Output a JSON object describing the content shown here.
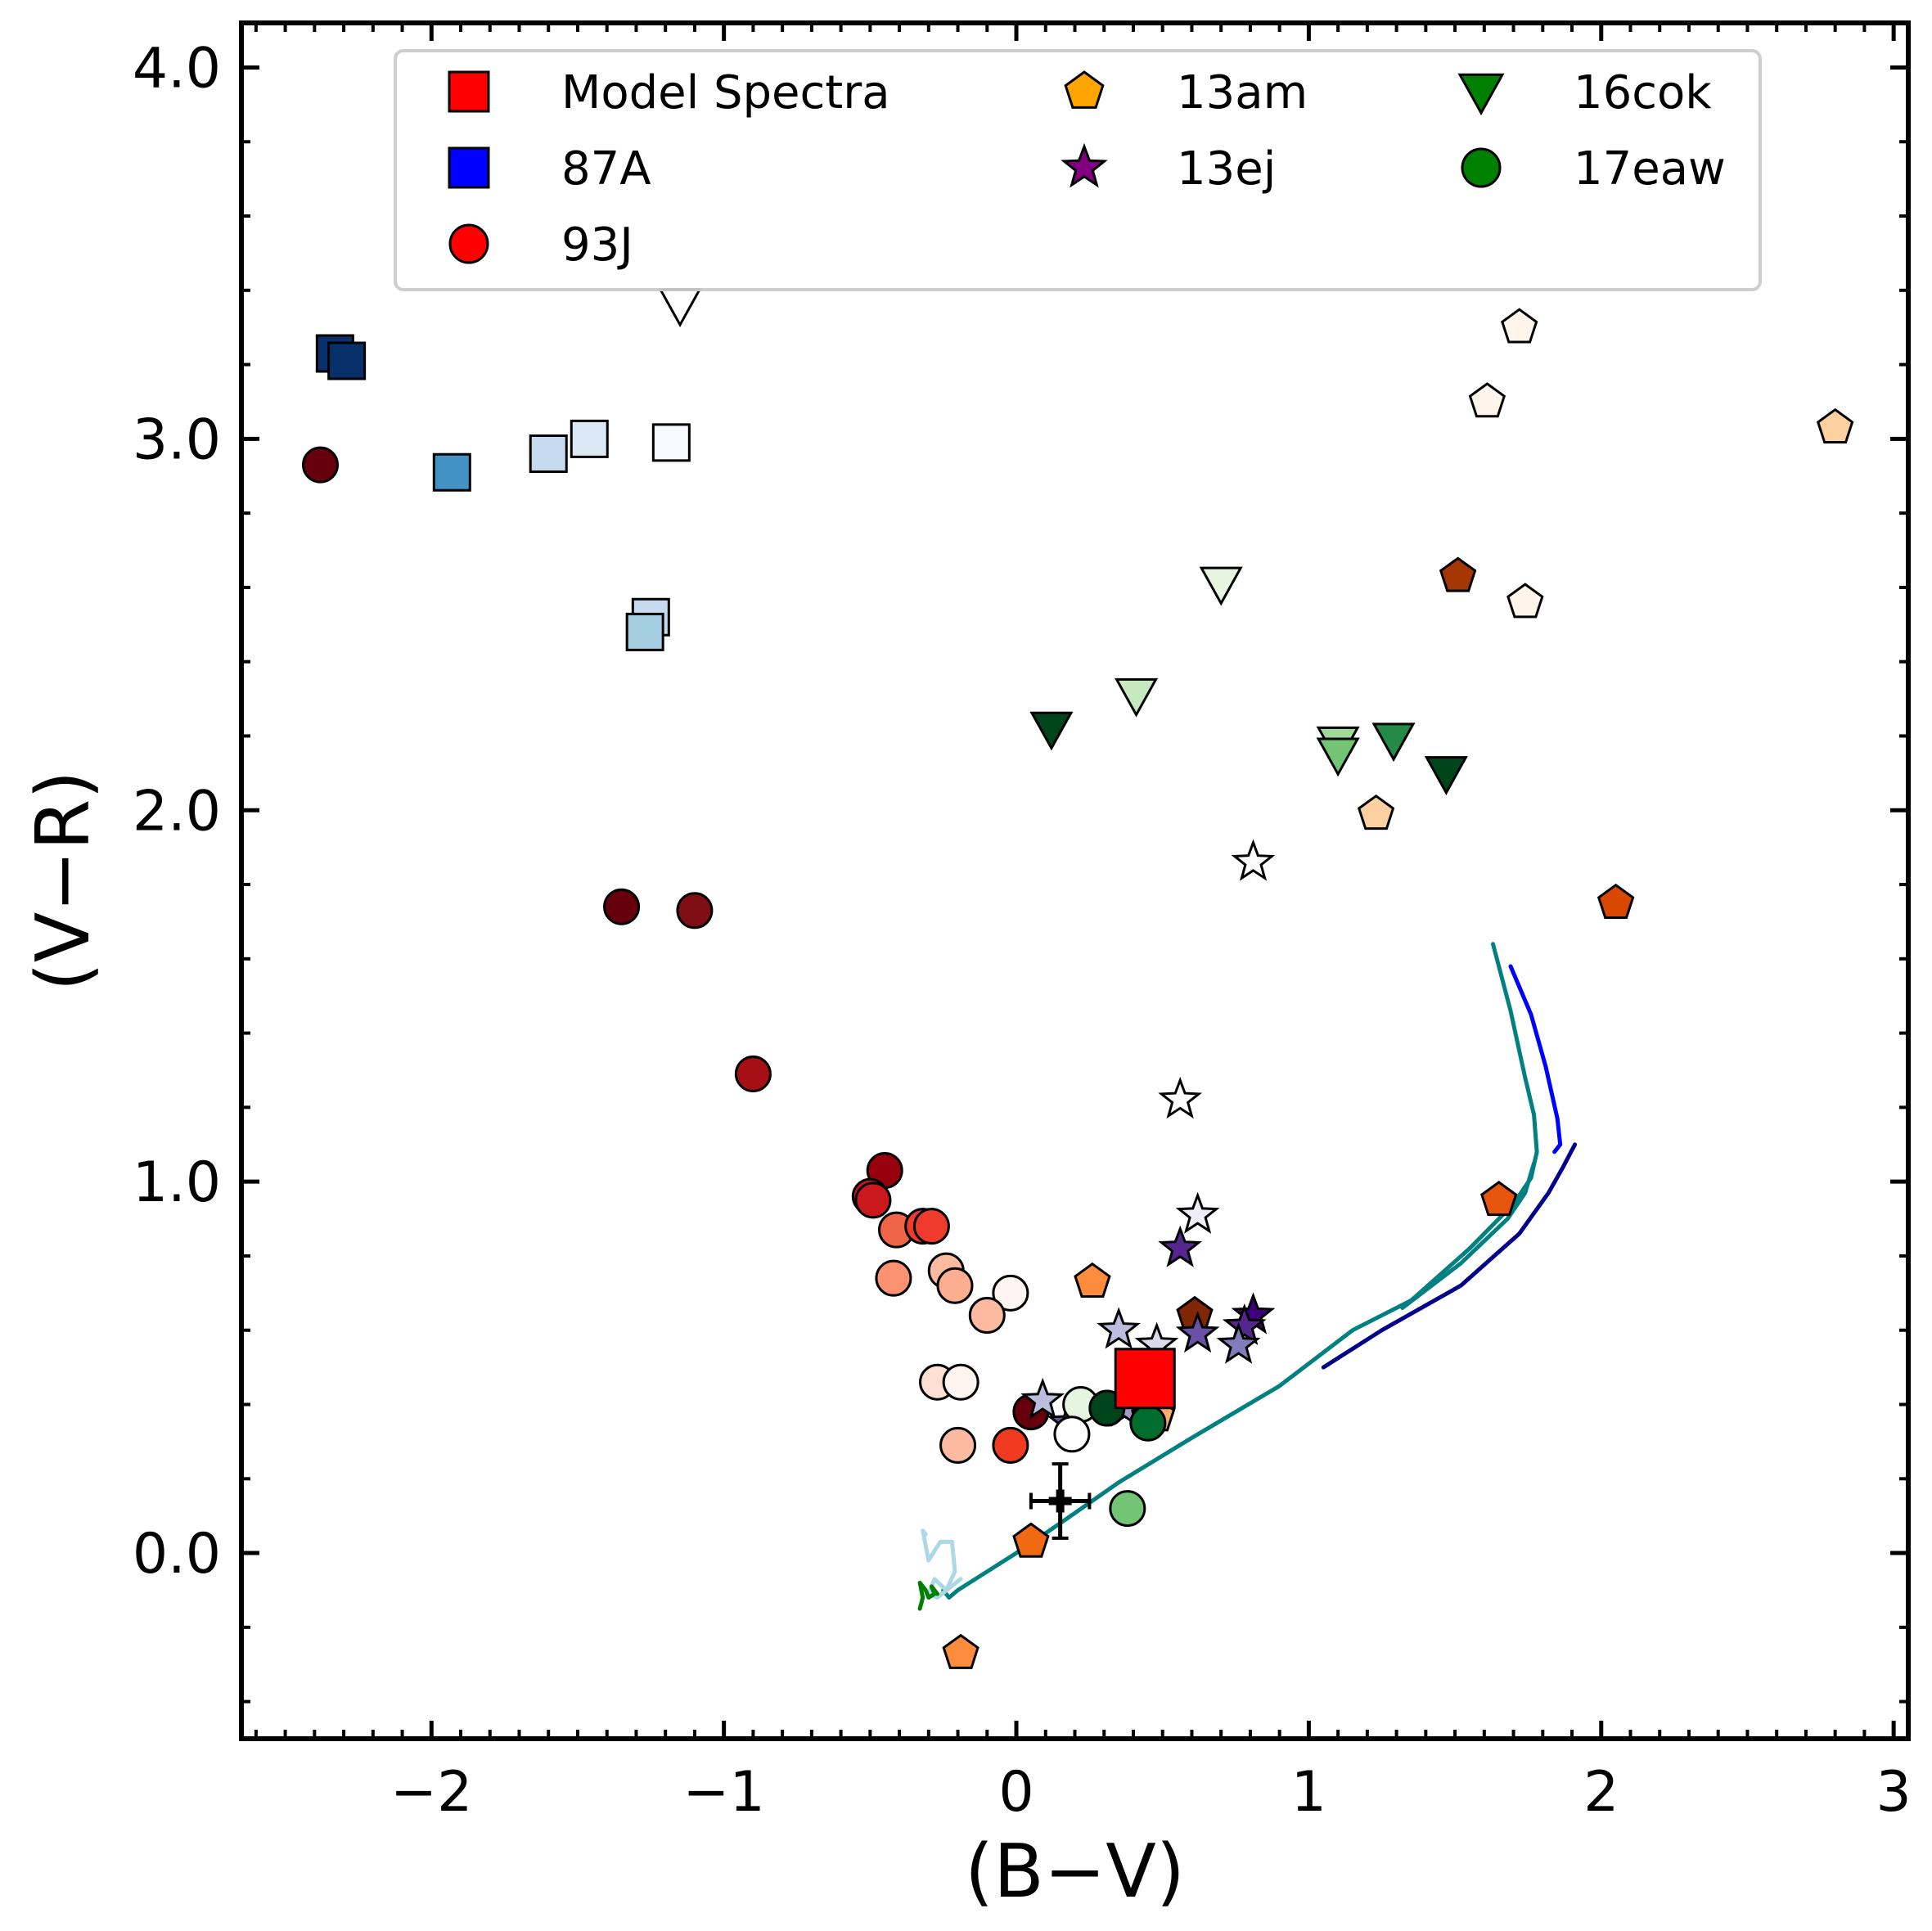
{
  "chart_data": {
    "type": "scatter",
    "title": "",
    "xlabel": "(B−V)",
    "ylabel": "(V−R)",
    "xlim": [
      -2.65,
      3.05
    ],
    "ylim": [
      -0.5,
      4.12
    ],
    "xticks": [
      {
        "value": -2,
        "label": "−2"
      },
      {
        "value": -1,
        "label": "−1"
      },
      {
        "value": 0,
        "label": "0"
      },
      {
        "value": 1,
        "label": "1"
      },
      {
        "value": 2,
        "label": "2"
      },
      {
        "value": 3,
        "label": "3"
      }
    ],
    "yticks": [
      {
        "value": 0,
        "label": "0.0"
      },
      {
        "value": 1,
        "label": "1.0"
      },
      {
        "value": 2,
        "label": "2.0"
      },
      {
        "value": 3,
        "label": "3.0"
      },
      {
        "value": 4,
        "label": "4.0"
      }
    ],
    "legend": {
      "position": "top-center",
      "entries": [
        {
          "label": "Model Spectra",
          "marker": "square",
          "color": "#ff0000"
        },
        {
          "label": "13am",
          "marker": "pentagon",
          "color": "#ffa500"
        },
        {
          "label": "16cok",
          "marker": "triangle-down",
          "color": "#008000"
        },
        {
          "label": "87A",
          "marker": "square",
          "color": "#0000ff"
        },
        {
          "label": "13ej",
          "marker": "star",
          "color": "#800080"
        },
        {
          "label": "17eaw",
          "marker": "circle",
          "color": "#008000"
        },
        {
          "label": "93J",
          "marker": "circle",
          "color": "#ff0000"
        }
      ]
    },
    "series": [
      {
        "name": "87A",
        "marker": "square",
        "points": [
          {
            "x": -2.33,
            "y": 3.23,
            "color": "#08306b"
          },
          {
            "x": -2.29,
            "y": 3.21,
            "color": "#08306b"
          },
          {
            "x": -1.93,
            "y": 2.91,
            "color": "#4292c6"
          },
          {
            "x": -1.6,
            "y": 2.96,
            "color": "#c6dbef"
          },
          {
            "x": -1.46,
            "y": 3.0,
            "color": "#dbe9f6"
          },
          {
            "x": -1.18,
            "y": 2.99,
            "color": "#f7fbff"
          },
          {
            "x": -1.25,
            "y": 2.52,
            "color": "#c6dbef"
          },
          {
            "x": -1.27,
            "y": 2.48,
            "color": "#a6cee3"
          }
        ]
      },
      {
        "name": "93J",
        "marker": "circle",
        "points": [
          {
            "x": -2.38,
            "y": 2.93,
            "color": "#67000d"
          },
          {
            "x": -1.35,
            "y": 1.74,
            "color": "#67000d"
          },
          {
            "x": -1.1,
            "y": 1.73,
            "color": "#7f0f14"
          },
          {
            "x": -0.9,
            "y": 1.29,
            "color": "#a50f15"
          },
          {
            "x": -0.45,
            "y": 1.03,
            "color": "#99000d"
          },
          {
            "x": -0.5,
            "y": 0.96,
            "color": "#cb181d"
          },
          {
            "x": -0.49,
            "y": 0.95,
            "color": "#cb181d"
          },
          {
            "x": -0.41,
            "y": 0.87,
            "color": "#ef6548"
          },
          {
            "x": -0.32,
            "y": 0.88,
            "color": "#ef3b2c"
          },
          {
            "x": -0.29,
            "y": 0.88,
            "color": "#ef3b2c"
          },
          {
            "x": -0.42,
            "y": 0.74,
            "color": "#fc9272"
          },
          {
            "x": -0.24,
            "y": 0.76,
            "color": "#fcbba1"
          },
          {
            "x": -0.21,
            "y": 0.72,
            "color": "#fcae91"
          },
          {
            "x": -0.02,
            "y": 0.7,
            "color": "#fff5f0"
          },
          {
            "x": -0.1,
            "y": 0.64,
            "color": "#fcbba1"
          },
          {
            "x": -0.27,
            "y": 0.46,
            "color": "#fee0d2"
          },
          {
            "x": -0.19,
            "y": 0.46,
            "color": "#fff5f0"
          },
          {
            "x": 0.05,
            "y": 0.38,
            "color": "#67000d"
          },
          {
            "x": -0.2,
            "y": 0.29,
            "color": "#fcbba1"
          },
          {
            "x": -0.02,
            "y": 0.29,
            "color": "#f03b20"
          }
        ]
      },
      {
        "name": "13am",
        "marker": "pentagon",
        "points": [
          {
            "x": 1.72,
            "y": 3.3,
            "color": "#fff5eb"
          },
          {
            "x": 1.61,
            "y": 3.1,
            "color": "#fff5eb"
          },
          {
            "x": 2.8,
            "y": 3.03,
            "color": "#fdd0a2"
          },
          {
            "x": 1.51,
            "y": 2.63,
            "color": "#a63603"
          },
          {
            "x": 1.74,
            "y": 2.56,
            "color": "#fff5eb"
          },
          {
            "x": 1.23,
            "y": 1.99,
            "color": "#fdd0a2"
          },
          {
            "x": 2.05,
            "y": 1.75,
            "color": "#d94801"
          },
          {
            "x": 1.65,
            "y": 0.95,
            "color": "#e6550d"
          },
          {
            "x": 0.26,
            "y": 0.73,
            "color": "#fd8d3c"
          },
          {
            "x": 0.61,
            "y": 0.64,
            "color": "#7f2704"
          },
          {
            "x": 0.48,
            "y": 0.37,
            "color": "#fdae6b"
          },
          {
            "x": 0.05,
            "y": 0.03,
            "color": "#f16913"
          },
          {
            "x": -0.19,
            "y": -0.27,
            "color": "#fd8d3c"
          }
        ]
      },
      {
        "name": "13ej",
        "marker": "star",
        "points": [
          {
            "x": 0.81,
            "y": 1.86,
            "color": "#fcfbfd"
          },
          {
            "x": 0.56,
            "y": 1.22,
            "color": "#fcfbfd"
          },
          {
            "x": 0.62,
            "y": 0.91,
            "color": "#efedf5"
          },
          {
            "x": 0.56,
            "y": 0.82,
            "color": "#54278f"
          },
          {
            "x": 0.81,
            "y": 0.64,
            "color": "#3f007d"
          },
          {
            "x": 0.78,
            "y": 0.61,
            "color": "#54278f"
          },
          {
            "x": 0.62,
            "y": 0.59,
            "color": "#6a51a3"
          },
          {
            "x": 0.35,
            "y": 0.6,
            "color": "#bcbddc"
          },
          {
            "x": 0.48,
            "y": 0.56,
            "color": "#dadaeb"
          },
          {
            "x": 0.76,
            "y": 0.56,
            "color": "#807dba"
          },
          {
            "x": 0.09,
            "y": 0.41,
            "color": "#bcbddc"
          },
          {
            "x": 0.18,
            "y": 0.35,
            "color": "#6a51a3"
          },
          {
            "x": 0.37,
            "y": 0.39,
            "color": "#9e9ac8"
          }
        ]
      },
      {
        "name": "16cok",
        "marker": "triangle-down",
        "points": [
          {
            "x": -1.15,
            "y": 3.36,
            "color": "#ffffff"
          },
          {
            "x": 0.7,
            "y": 2.61,
            "color": "#e5f5e0"
          },
          {
            "x": 0.41,
            "y": 2.31,
            "color": "#c7e9c0"
          },
          {
            "x": 0.12,
            "y": 2.22,
            "color": "#00441b"
          },
          {
            "x": 1.1,
            "y": 2.18,
            "color": "#a1d99b"
          },
          {
            "x": 1.1,
            "y": 2.15,
            "color": "#74c476"
          },
          {
            "x": 1.29,
            "y": 2.19,
            "color": "#238b45"
          },
          {
            "x": 1.47,
            "y": 2.1,
            "color": "#00441b"
          }
        ]
      },
      {
        "name": "17eaw",
        "marker": "circle",
        "points": [
          {
            "x": 0.22,
            "y": 0.4,
            "color": "#e5f5e0"
          },
          {
            "x": 0.19,
            "y": 0.32,
            "color": "#ffffff"
          },
          {
            "x": 0.31,
            "y": 0.39,
            "color": "#00441b"
          },
          {
            "x": 0.45,
            "y": 0.35,
            "color": "#006d2c"
          },
          {
            "x": 0.38,
            "y": 0.12,
            "color": "#74c476"
          }
        ]
      },
      {
        "name": "Model Spectra",
        "marker": "square",
        "points": [
          {
            "x": 0.44,
            "y": 0.47,
            "color": "#ff0000",
            "size": "large"
          }
        ]
      }
    ],
    "observation": {
      "x": 0.15,
      "y": 0.14,
      "xerr": 0.1,
      "yerr": 0.1,
      "marker": "plus",
      "color": "#000000"
    },
    "model_tracks": [
      {
        "color": "#0000ff",
        "width": 5,
        "points": [
          [
            1.69,
            1.58
          ],
          [
            1.76,
            1.45
          ],
          [
            1.81,
            1.31
          ],
          [
            1.85,
            1.17
          ],
          [
            1.86,
            1.1
          ],
          [
            1.84,
            1.08
          ]
        ]
      },
      {
        "color": "#00008b",
        "width": 5,
        "points": [
          [
            1.05,
            0.5
          ],
          [
            1.25,
            0.6
          ],
          [
            1.52,
            0.72
          ],
          [
            1.72,
            0.86
          ],
          [
            1.82,
            0.97
          ],
          [
            1.87,
            1.04
          ],
          [
            1.91,
            1.1
          ]
        ]
      },
      {
        "color": "#008080",
        "width": 5,
        "points": [
          [
            1.63,
            1.64
          ],
          [
            1.69,
            1.46
          ],
          [
            1.74,
            1.28
          ],
          [
            1.77,
            1.18
          ],
          [
            1.78,
            1.08
          ],
          [
            1.76,
            1.01
          ],
          [
            1.7,
            0.94
          ],
          [
            1.55,
            0.82
          ],
          [
            1.35,
            0.68
          ],
          [
            1.15,
            0.6
          ],
          [
            0.9,
            0.45
          ],
          [
            0.6,
            0.31
          ],
          [
            0.35,
            0.19
          ],
          [
            0.15,
            0.08
          ],
          [
            0.0,
            0.0
          ],
          [
            -0.12,
            -0.06
          ],
          [
            -0.2,
            -0.1
          ],
          [
            -0.23,
            -0.12
          ],
          [
            -0.25,
            -0.1
          ]
        ]
      },
      {
        "color": "#008080",
        "width": 5,
        "points": [
          [
            1.77,
            1.05
          ],
          [
            1.74,
            0.97
          ],
          [
            1.68,
            0.9
          ],
          [
            1.52,
            0.78
          ],
          [
            1.32,
            0.66
          ]
        ]
      },
      {
        "color": "#add8e6",
        "width": 5,
        "points": [
          [
            -0.31,
            0.05
          ],
          [
            -0.32,
            0.06
          ],
          [
            -0.3,
            -0.02
          ],
          [
            -0.26,
            0.03
          ],
          [
            -0.22,
            0.03
          ],
          [
            -0.21,
            -0.05
          ],
          [
            -0.24,
            -0.1
          ],
          [
            -0.28,
            -0.07
          ],
          [
            -0.3,
            -0.11
          ],
          [
            -0.27,
            -0.12
          ],
          [
            -0.19,
            -0.07
          ]
        ]
      },
      {
        "color": "#008000",
        "width": 5,
        "points": [
          [
            -0.33,
            -0.15
          ],
          [
            -0.32,
            -0.12
          ],
          [
            -0.33,
            -0.08
          ],
          [
            -0.31,
            -0.1
          ],
          [
            -0.3,
            -0.12
          ],
          [
            -0.28,
            -0.11
          ],
          [
            -0.29,
            -0.09
          ],
          [
            -0.27,
            -0.11
          ]
        ]
      }
    ]
  }
}
